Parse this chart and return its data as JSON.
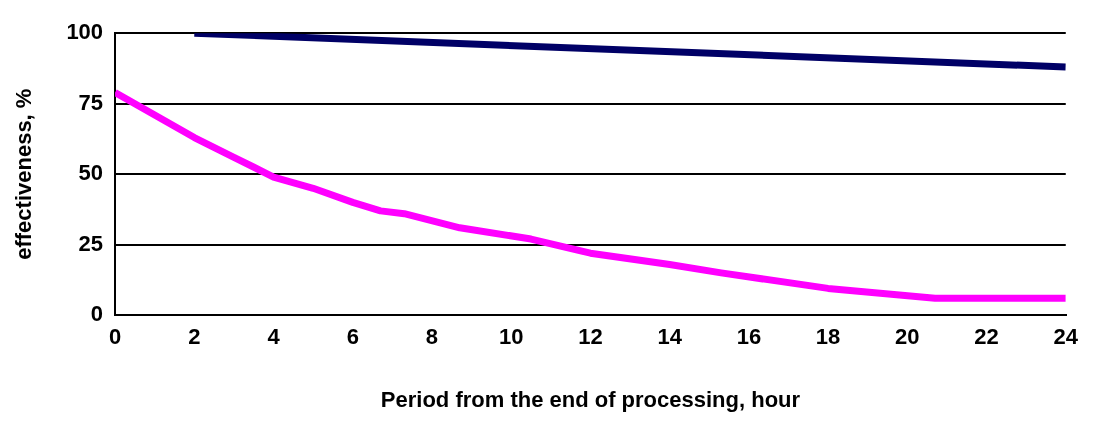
{
  "chart_data": {
    "type": "line",
    "xlabel": "Period from the end of processing, hour",
    "ylabel": "effectiveness, %",
    "xlim": [
      0,
      24
    ],
    "xticks": [
      0,
      2,
      4,
      6,
      8,
      10,
      12,
      14,
      16,
      18,
      20,
      22,
      24
    ],
    "ylim": [
      0,
      100
    ],
    "yticks": [
      0,
      25,
      50,
      75,
      100
    ],
    "grid": "y",
    "legend": false,
    "marker": "none",
    "line_style": "solid",
    "series": [
      {
        "color": "#000066",
        "x": [
          2,
          24
        ],
        "values": [
          100,
          88
        ]
      },
      {
        "color": "#ff00ff",
        "x": [
          0,
          2,
          3,
          4,
          5,
          6,
          6.7,
          7.3,
          8.7,
          10.5,
          12,
          14,
          15.3,
          18,
          20.7,
          24
        ],
        "values": [
          79,
          63,
          56,
          49,
          45,
          40,
          37,
          36,
          31,
          27,
          22,
          18,
          15,
          9.5,
          6,
          6
        ]
      }
    ]
  }
}
